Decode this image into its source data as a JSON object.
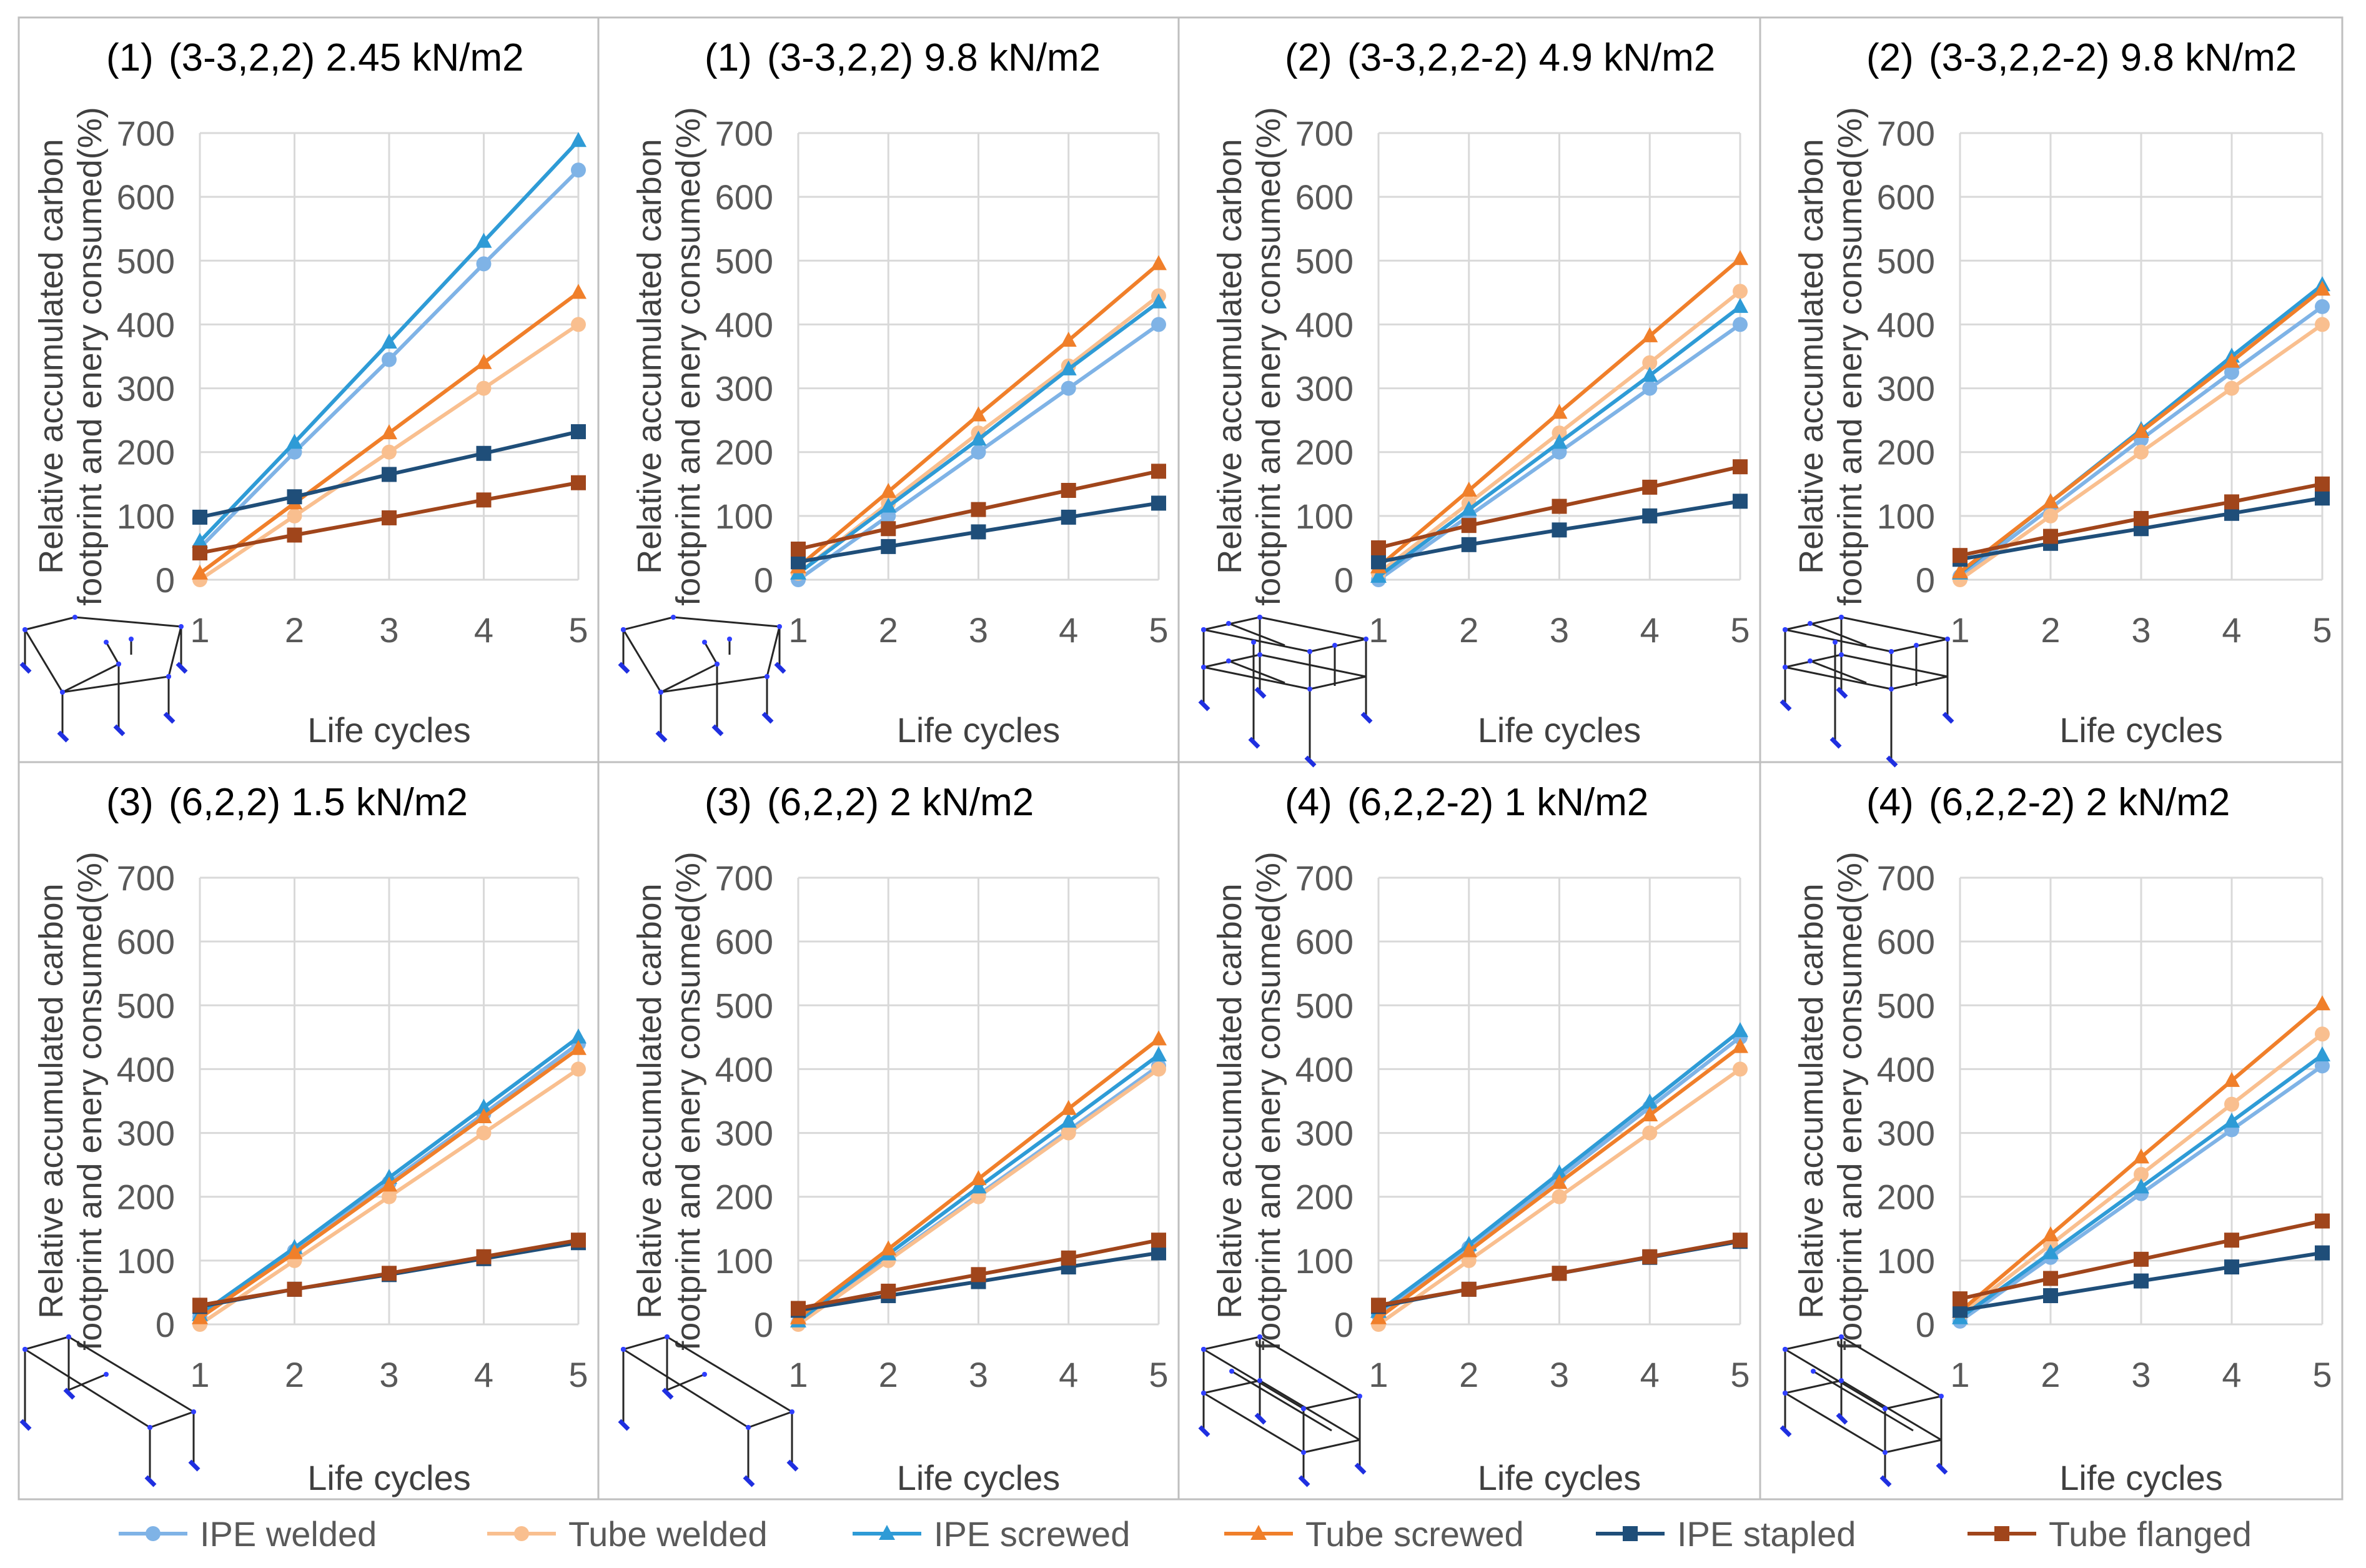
{
  "figure": {
    "x_axis_title": "Life cycles",
    "y_axis_title_line1": "Relative accumulated carbon",
    "y_axis_title_line2": "footprint and enery consumed(%)"
  },
  "legend": [
    {
      "name": "IPE welded",
      "color": "#7fb3e6",
      "marker": "circle"
    },
    {
      "name": "Tube welded",
      "color": "#f9bf8f",
      "marker": "circle"
    },
    {
      "name": "IPE screwed",
      "color": "#2e9bd6",
      "marker": "triangle"
    },
    {
      "name": "Tube screwed",
      "color": "#f07f2a",
      "marker": "triangle"
    },
    {
      "name": "IPE stapled",
      "color": "#1f4e79",
      "marker": "square"
    },
    {
      "name": "Tube flanged",
      "color": "#a0451b",
      "marker": "square"
    }
  ],
  "chart_data": [
    {
      "type": "line",
      "id_label": "(1)",
      "title": "(3-3,2,2) 2.45 kN/m2",
      "xlabel": "Life cycles",
      "ylabel": "Relative accumulated carbon footprint and enery consumed(%)",
      "x": [
        1,
        2,
        3,
        4,
        5
      ],
      "ylim": [
        0,
        700
      ],
      "yticks": [
        0,
        100,
        200,
        300,
        400,
        500,
        600,
        700
      ],
      "structure_icon": "frame-2bay-single",
      "series": [
        {
          "name": "IPE welded",
          "values": [
            50,
            200,
            345,
            495,
            642
          ]
        },
        {
          "name": "Tube welded",
          "values": [
            0,
            100,
            200,
            300,
            400
          ]
        },
        {
          "name": "IPE screwed",
          "values": [
            60,
            215,
            372,
            530,
            688
          ]
        },
        {
          "name": "Tube screwed",
          "values": [
            10,
            120,
            230,
            340,
            450
          ]
        },
        {
          "name": "IPE stapled",
          "values": [
            98,
            130,
            165,
            198,
            232
          ]
        },
        {
          "name": "Tube flanged",
          "values": [
            42,
            70,
            97,
            125,
            152
          ]
        }
      ]
    },
    {
      "type": "line",
      "id_label": "(1)",
      "title": "(3-3,2,2) 9.8 kN/m2",
      "xlabel": "Life cycles",
      "ylabel": "Relative accumulated carbon footprint and enery consumed(%)",
      "x": [
        1,
        2,
        3,
        4,
        5
      ],
      "ylim": [
        0,
        700
      ],
      "yticks": [
        0,
        100,
        200,
        300,
        400,
        500,
        600,
        700
      ],
      "structure_icon": "frame-2bay-single",
      "series": [
        {
          "name": "IPE welded",
          "values": [
            0,
            100,
            200,
            300,
            400
          ]
        },
        {
          "name": "Tube welded",
          "values": [
            10,
            120,
            230,
            335,
            445
          ]
        },
        {
          "name": "IPE screwed",
          "values": [
            10,
            115,
            220,
            330,
            435
          ]
        },
        {
          "name": "Tube screwed",
          "values": [
            20,
            138,
            258,
            375,
            495
          ]
        },
        {
          "name": "IPE stapled",
          "values": [
            28,
            52,
            75,
            98,
            120
          ]
        },
        {
          "name": "Tube flanged",
          "values": [
            48,
            80,
            110,
            140,
            170
          ]
        }
      ]
    },
    {
      "type": "line",
      "id_label": "(2)",
      "title": "(3-3,2,2-2) 4.9 kN/m2",
      "xlabel": "Life cycles",
      "ylabel": "Relative accumulated carbon footprint and enery consumed(%)",
      "x": [
        1,
        2,
        3,
        4,
        5
      ],
      "ylim": [
        0,
        700
      ],
      "yticks": [
        0,
        100,
        200,
        300,
        400,
        500,
        600,
        700
      ],
      "structure_icon": "frame-2bay-double",
      "series": [
        {
          "name": "IPE welded",
          "values": [
            0,
            100,
            200,
            300,
            400
          ]
        },
        {
          "name": "Tube welded",
          "values": [
            10,
            120,
            230,
            340,
            452
          ]
        },
        {
          "name": "IPE screwed",
          "values": [
            5,
            110,
            215,
            320,
            428
          ]
        },
        {
          "name": "Tube screwed",
          "values": [
            20,
            140,
            262,
            382,
            503
          ]
        },
        {
          "name": "IPE stapled",
          "values": [
            28,
            55,
            78,
            100,
            123
          ]
        },
        {
          "name": "Tube flanged",
          "values": [
            50,
            85,
            115,
            145,
            177
          ]
        }
      ]
    },
    {
      "type": "line",
      "id_label": "(2)",
      "title": "(3-3,2,2-2) 9.8 kN/m2",
      "xlabel": "Life cycles",
      "ylabel": "Relative accumulated carbon footprint and enery consumed(%)",
      "x": [
        1,
        2,
        3,
        4,
        5
      ],
      "ylim": [
        0,
        700
      ],
      "yticks": [
        0,
        100,
        200,
        300,
        400,
        500,
        600,
        700
      ],
      "structure_icon": "frame-2bay-double",
      "series": [
        {
          "name": "IPE welded",
          "values": [
            5,
            112,
            220,
            325,
            428
          ]
        },
        {
          "name": "Tube welded",
          "values": [
            0,
            100,
            200,
            300,
            400
          ]
        },
        {
          "name": "IPE screwed",
          "values": [
            10,
            122,
            235,
            350,
            462
          ]
        },
        {
          "name": "Tube screwed",
          "values": [
            12,
            122,
            232,
            342,
            455
          ]
        },
        {
          "name": "IPE stapled",
          "values": [
            32,
            57,
            80,
            104,
            128
          ]
        },
        {
          "name": "Tube flanged",
          "values": [
            38,
            68,
            96,
            122,
            150
          ]
        }
      ]
    },
    {
      "type": "line",
      "id_label": "(3)",
      "title": "(6,2,2) 1.5 kN/m2",
      "xlabel": "Life cycles",
      "ylabel": "Relative accumulated carbon footprint and enery consumed(%)",
      "x": [
        1,
        2,
        3,
        4,
        5
      ],
      "ylim": [
        0,
        700
      ],
      "yticks": [
        0,
        100,
        200,
        300,
        400,
        500,
        600,
        700
      ],
      "structure_icon": "frame-1bay-single",
      "series": [
        {
          "name": "IPE welded",
          "values": [
            12,
            115,
            222,
            330,
            440
          ]
        },
        {
          "name": "Tube welded",
          "values": [
            0,
            100,
            200,
            300,
            400
          ]
        },
        {
          "name": "IPE screwed",
          "values": [
            15,
            120,
            230,
            340,
            450
          ]
        },
        {
          "name": "Tube screwed",
          "values": [
            10,
            112,
            218,
            325,
            432
          ]
        },
        {
          "name": "IPE stapled",
          "values": [
            28,
            55,
            78,
            103,
            128
          ]
        },
        {
          "name": "Tube flanged",
          "values": [
            30,
            55,
            80,
            106,
            132
          ]
        }
      ]
    },
    {
      "type": "line",
      "id_label": "(3)",
      "title": "(6,2,2) 2 kN/m2",
      "xlabel": "Life cycles",
      "ylabel": "Relative accumulated carbon footprint and enery consumed(%)",
      "x": [
        1,
        2,
        3,
        4,
        5
      ],
      "ylim": [
        0,
        700
      ],
      "yticks": [
        0,
        100,
        200,
        300,
        400,
        500,
        600,
        700
      ],
      "structure_icon": "frame-1bay-single",
      "series": [
        {
          "name": "IPE welded",
          "values": [
            2,
            102,
            203,
            304,
            405
          ]
        },
        {
          "name": "Tube welded",
          "values": [
            0,
            100,
            200,
            300,
            400
          ]
        },
        {
          "name": "IPE screwed",
          "values": [
            5,
            110,
            215,
            318,
            422
          ]
        },
        {
          "name": "Tube screwed",
          "values": [
            10,
            118,
            228,
            338,
            447
          ]
        },
        {
          "name": "IPE stapled",
          "values": [
            22,
            45,
            67,
            90,
            112
          ]
        },
        {
          "name": "Tube flanged",
          "values": [
            25,
            52,
            78,
            104,
            132
          ]
        }
      ]
    },
    {
      "type": "line",
      "id_label": "(4)",
      "title": "(6,2,2-2) 1 kN/m2",
      "xlabel": "Life cycles",
      "ylabel": "Relative accumulated carbon footprint and enery consumed(%)",
      "x": [
        1,
        2,
        3,
        4,
        5
      ],
      "ylim": [
        0,
        700
      ],
      "yticks": [
        0,
        100,
        200,
        300,
        400,
        500,
        600,
        700
      ],
      "structure_icon": "frame-1bay-double",
      "series": [
        {
          "name": "IPE welded",
          "values": [
            15,
            120,
            230,
            340,
            450
          ]
        },
        {
          "name": "Tube welded",
          "values": [
            0,
            100,
            200,
            300,
            400
          ]
        },
        {
          "name": "IPE screwed",
          "values": [
            20,
            125,
            237,
            348,
            460
          ]
        },
        {
          "name": "Tube screwed",
          "values": [
            10,
            115,
            222,
            328,
            435
          ]
        },
        {
          "name": "IPE stapled",
          "values": [
            28,
            55,
            80,
            105,
            130
          ]
        },
        {
          "name": "Tube flanged",
          "values": [
            30,
            55,
            80,
            106,
            132
          ]
        }
      ]
    },
    {
      "type": "line",
      "id_label": "(4)",
      "title": "(6,2,2-2) 2 kN/m2",
      "xlabel": "Life cycles",
      "ylabel": "Relative accumulated carbon footprint and enery consumed(%)",
      "x": [
        1,
        2,
        3,
        4,
        5
      ],
      "ylim": [
        0,
        700
      ],
      "yticks": [
        0,
        100,
        200,
        300,
        400,
        500,
        600,
        700
      ],
      "structure_icon": "frame-1bay-double",
      "series": [
        {
          "name": "IPE welded",
          "values": [
            5,
            105,
            205,
            305,
            405
          ]
        },
        {
          "name": "Tube welded",
          "values": [
            15,
            125,
            235,
            345,
            455
          ]
        },
        {
          "name": "IPE screwed",
          "values": [
            10,
            112,
            215,
            318,
            422
          ]
        },
        {
          "name": "Tube screwed",
          "values": [
            20,
            140,
            262,
            382,
            502
          ]
        },
        {
          "name": "IPE stapled",
          "values": [
            22,
            45,
            68,
            90,
            112
          ]
        },
        {
          "name": "Tube flanged",
          "values": [
            40,
            72,
            102,
            132,
            162
          ]
        }
      ]
    }
  ]
}
